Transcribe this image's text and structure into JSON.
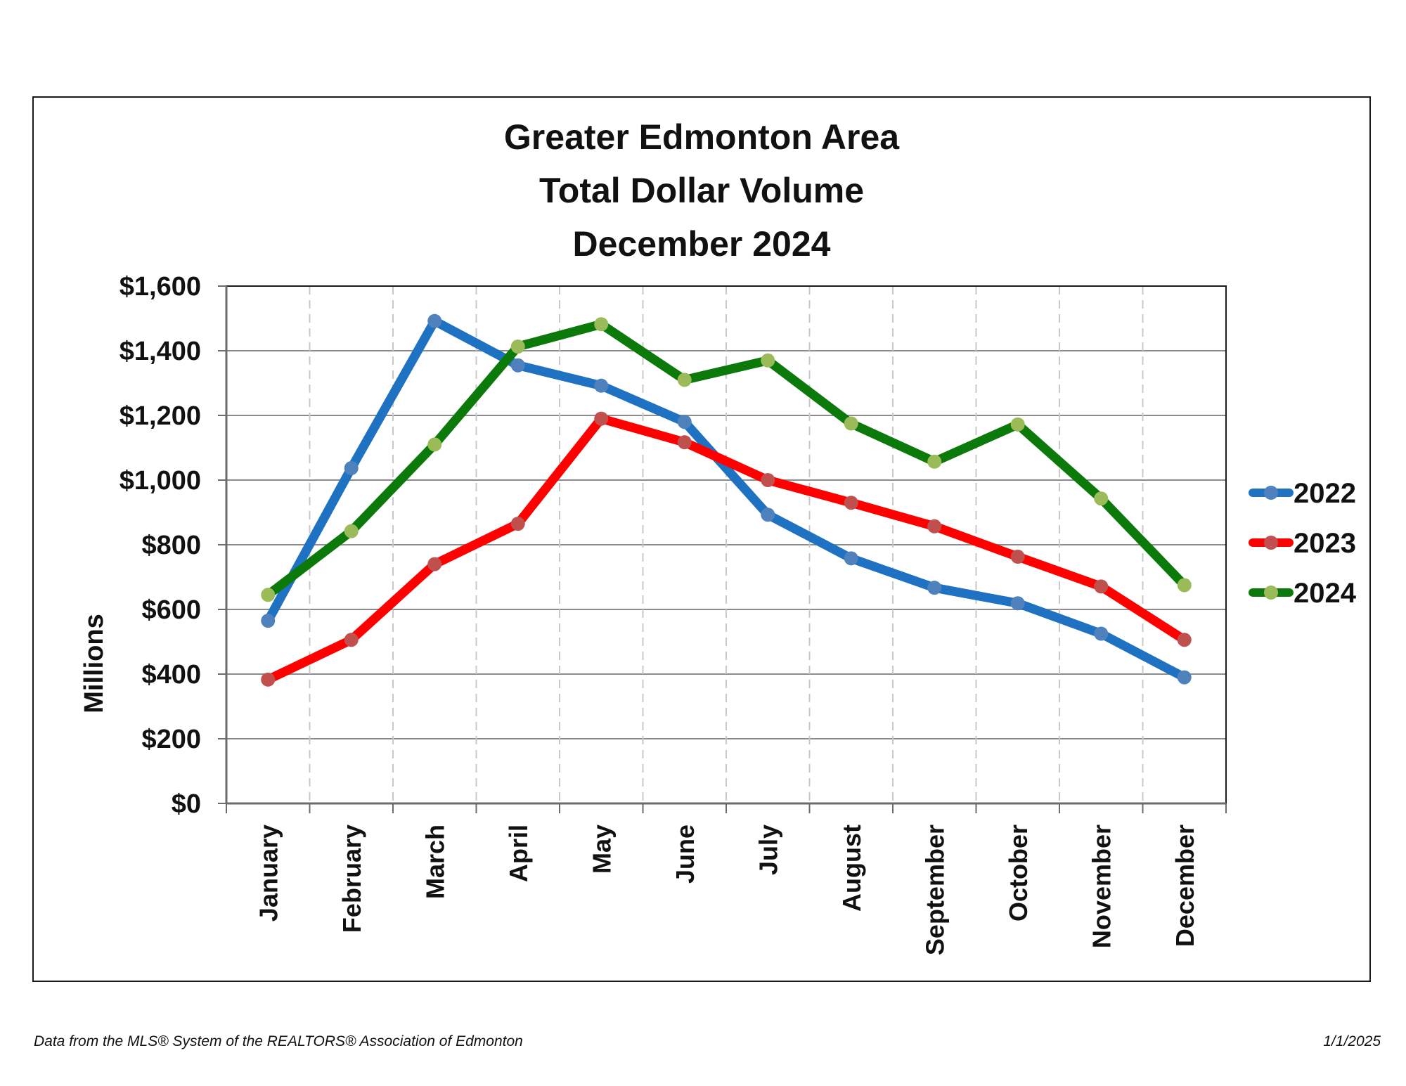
{
  "chart_data": {
    "type": "line",
    "title": [
      "Greater Edmonton Area",
      "Total Dollar Volume",
      "December 2024"
    ],
    "ylabel": "Millions",
    "xlabel": "",
    "categories": [
      "January",
      "February",
      "March",
      "April",
      "May",
      "June",
      "July",
      "August",
      "September",
      "October",
      "November",
      "December"
    ],
    "ylim": [
      0,
      1600
    ],
    "yticks": [
      0,
      200,
      400,
      600,
      800,
      1000,
      1200,
      1400,
      1600
    ],
    "ytick_labels": [
      "$0",
      "$200",
      "$400",
      "$600",
      "$800",
      "$1,000",
      "$1,200",
      "$1,400",
      "$1,600"
    ],
    "grid": {
      "horizontal": "solid",
      "vertical": "dashed"
    },
    "legend_position": "right",
    "series": [
      {
        "name": "2022",
        "color": "#1f72c2",
        "marker_color": "#4f81bd",
        "values": [
          565,
          1037,
          1492,
          1355,
          1292,
          1180,
          893,
          758,
          667,
          619,
          525,
          390
        ]
      },
      {
        "name": "2023",
        "color": "#ff0000",
        "marker_color": "#c0504d",
        "values": [
          383,
          506,
          740,
          865,
          1190,
          1117,
          1000,
          930,
          857,
          763,
          671,
          506
        ]
      },
      {
        "name": "2024",
        "color": "#0b7a0b",
        "marker_color": "#9bbb59",
        "values": [
          645,
          842,
          1110,
          1413,
          1482,
          1310,
          1370,
          1175,
          1057,
          1172,
          943,
          675
        ]
      }
    ]
  },
  "footer": {
    "source": "Data from the MLS® System of the REALTORS® Association of Edmonton",
    "date": "1/1/2025"
  }
}
